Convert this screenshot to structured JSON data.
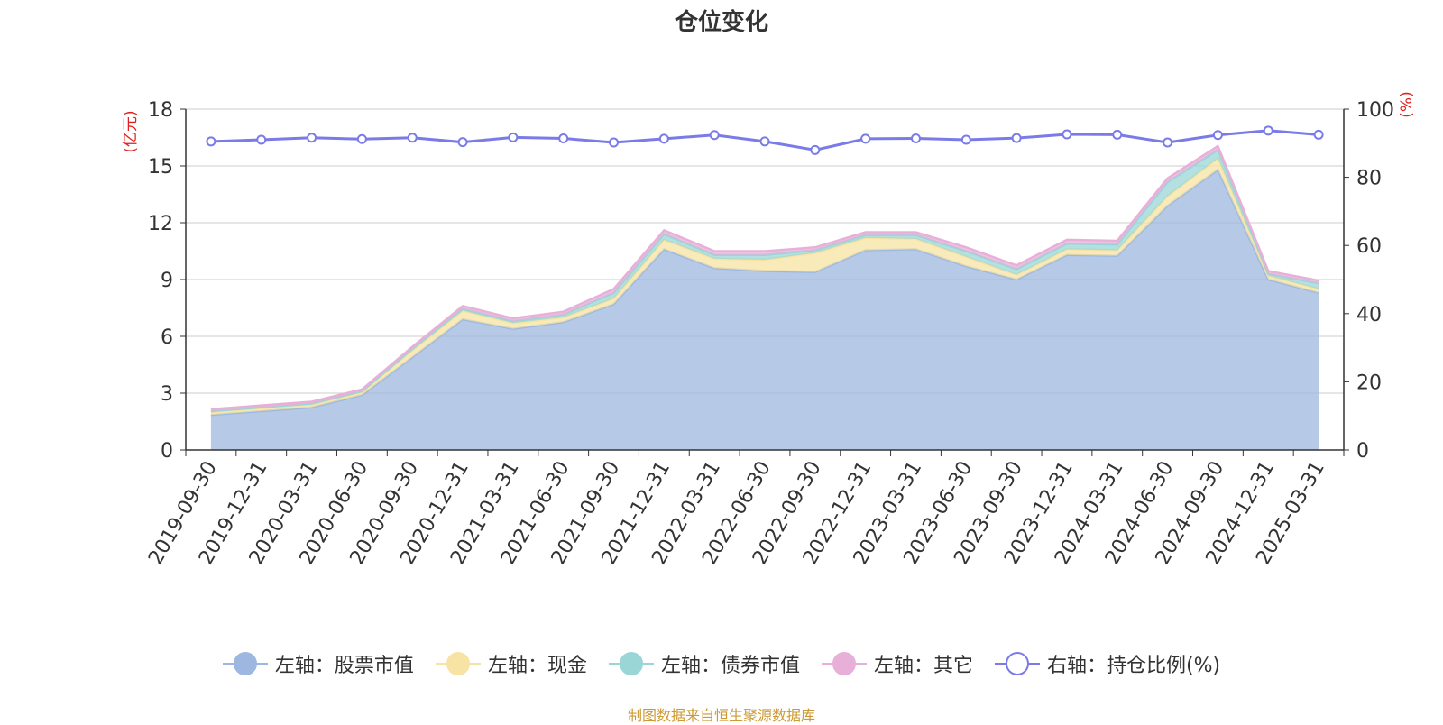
{
  "chart_data": {
    "type": "area",
    "title": "仓位变化",
    "left_axis_unit": "(亿元)",
    "right_axis_unit": "(%)",
    "left_ylim": [
      0,
      18
    ],
    "left_ticks": [
      0,
      3,
      6,
      9,
      12,
      15,
      18
    ],
    "right_ylim": [
      0,
      100
    ],
    "right_ticks": [
      0,
      20,
      40,
      60,
      80,
      100
    ],
    "grid": true,
    "legend_position": "bottom",
    "x": [
      "2019-09-30",
      "2019-12-31",
      "2020-03-31",
      "2020-06-30",
      "2020-09-30",
      "2020-12-31",
      "2021-03-31",
      "2021-06-30",
      "2021-09-30",
      "2021-12-31",
      "2022-03-31",
      "2022-06-30",
      "2022-09-30",
      "2022-12-31",
      "2023-03-31",
      "2023-06-30",
      "2023-09-30",
      "2023-12-31",
      "2024-03-31",
      "2024-06-30",
      "2024-09-30",
      "2024-12-31",
      "2025-03-31"
    ],
    "series": [
      {
        "name": "左轴：股票市值",
        "axis": "left",
        "stacked": true,
        "color": "#9db8e0",
        "values": [
          1.85,
          2.05,
          2.25,
          2.9,
          4.9,
          6.9,
          6.4,
          6.75,
          7.7,
          10.6,
          9.6,
          9.45,
          9.4,
          10.55,
          10.6,
          9.7,
          9.0,
          10.3,
          10.25,
          12.9,
          14.8,
          9.0,
          8.3
        ]
      },
      {
        "name": "左轴：现金",
        "axis": "left",
        "stacked": true,
        "color": "#f7e3a3",
        "values": [
          0.15,
          0.15,
          0.15,
          0.15,
          0.35,
          0.45,
          0.3,
          0.25,
          0.3,
          0.5,
          0.5,
          0.6,
          1.0,
          0.65,
          0.55,
          0.5,
          0.25,
          0.3,
          0.3,
          0.5,
          0.6,
          0.2,
          0.2
        ]
      },
      {
        "name": "左轴：债券市值",
        "axis": "left",
        "stacked": true,
        "color": "#9ad6d6",
        "values": [
          0.05,
          0.05,
          0.05,
          0.05,
          0.1,
          0.1,
          0.1,
          0.15,
          0.3,
          0.3,
          0.2,
          0.25,
          0.15,
          0.15,
          0.2,
          0.3,
          0.3,
          0.3,
          0.3,
          0.75,
          0.45,
          0.1,
          0.3
        ]
      },
      {
        "name": "左轴：其它",
        "axis": "left",
        "stacked": true,
        "color": "#e8b0d9",
        "values": [
          0.1,
          0.1,
          0.1,
          0.1,
          0.1,
          0.15,
          0.15,
          0.15,
          0.2,
          0.2,
          0.2,
          0.2,
          0.15,
          0.15,
          0.15,
          0.2,
          0.2,
          0.2,
          0.2,
          0.2,
          0.2,
          0.15,
          0.15
        ]
      },
      {
        "name": "右轴：持仓比例(%)",
        "axis": "right",
        "type": "line",
        "color": "#7a7be8",
        "values": [
          90.5,
          91.0,
          91.6,
          91.2,
          91.6,
          90.3,
          91.7,
          91.4,
          90.2,
          91.3,
          92.4,
          90.5,
          88.0,
          91.3,
          91.4,
          91.0,
          91.5,
          92.6,
          92.5,
          90.2,
          92.4,
          93.7,
          92.5
        ]
      }
    ]
  },
  "source_text": "制图数据来自恒生聚源数据库"
}
